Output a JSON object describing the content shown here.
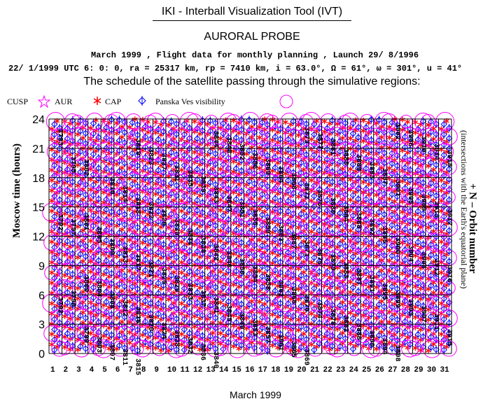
{
  "header": {
    "tool_title": "IKI - Interball Visualization Tool (IVT)",
    "probe": "AURORAL PROBE",
    "line1": "March 1999 ,  Flight data for monthly planning ,   Launch 29/ 8/1996",
    "line2": "22/ 1/1999 UTC  6: 0: 0, ra =  25317 km, rp =   7410 km, i = 63.0°, Ω =  61°, ω = 301°, u =  41°",
    "subtitle": "The schedule of the satellite passing through the simulative regions:"
  },
  "legend": {
    "cusp": "CUSP",
    "aur": "AUR",
    "cap": "CAP",
    "visibility": "Panska Ves visibility"
  },
  "colors": {
    "aur": "#ff00ff",
    "cap": "#ff0000",
    "visibility": "#0000ff",
    "visibility_circle": "#ff00ff",
    "grid": "#000000",
    "orbit_label": "#000000"
  },
  "chart_data": {
    "type": "scatter",
    "xlabel": "March 1999",
    "ylabel": "Moscow time (hours)",
    "right_label": "+ N – Orbit number",
    "right_sublabel": "(intersections with the Earth's equatorial plane)",
    "x_ticks": [
      "1",
      "2",
      "3",
      "4",
      "5",
      "6",
      "7",
      "8",
      "9",
      "10",
      "11",
      "12",
      "13",
      "14",
      "15",
      "16",
      "17",
      "18",
      "19",
      "20",
      "21",
      "22",
      "23",
      "24",
      "25",
      "26",
      "27",
      "28",
      "29",
      "30",
      "31"
    ],
    "y_ticks": [
      "0",
      "3",
      "6",
      "9",
      "12",
      "15",
      "18",
      "21",
      "24"
    ],
    "xlim": [
      1,
      32
    ],
    "ylim": [
      0,
      24
    ],
    "orbit_period_days": 2.0,
    "orbit_labels": [
      {
        "n": "3793",
        "x": 1.5,
        "y": 23.0
      },
      {
        "n": "3792",
        "x": 1.5,
        "y": 14.3
      },
      {
        "n": "3792",
        "x": 1.5,
        "y": 5.8
      },
      {
        "n": "3795",
        "x": 2.5,
        "y": 20.2
      },
      {
        "n": "3797",
        "x": 2.5,
        "y": 13.8
      },
      {
        "n": "3798",
        "x": 2.5,
        "y": 6.5
      },
      {
        "n": "3802",
        "x": 3.5,
        "y": 19.9
      },
      {
        "n": "3801",
        "x": 3.5,
        "y": 14.3
      },
      {
        "n": "3800",
        "x": 3.5,
        "y": 8.0
      },
      {
        "n": "3799",
        "x": 3.5,
        "y": 2.8
      },
      {
        "n": "3805",
        "x": 4.5,
        "y": 13.0
      },
      {
        "n": "3804",
        "x": 4.5,
        "y": 7.5
      },
      {
        "n": "3803",
        "x": 4.5,
        "y": 1.8
      },
      {
        "n": "3810",
        "x": 5.5,
        "y": 18.0
      },
      {
        "n": "3809",
        "x": 5.5,
        "y": 11.8
      },
      {
        "n": "3808",
        "x": 5.5,
        "y": 6.3
      },
      {
        "n": "3807",
        "x": 5.5,
        "y": 1.0
      },
      {
        "n": "3814",
        "x": 6.5,
        "y": 17.2
      },
      {
        "n": "3813",
        "x": 6.5,
        "y": 11.0
      },
      {
        "n": "3812",
        "x": 6.5,
        "y": 5.5
      },
      {
        "n": "3811",
        "x": 6.5,
        "y": 0.5
      },
      {
        "n": "3819",
        "x": 7.5,
        "y": 22.0
      },
      {
        "n": "3818",
        "x": 7.5,
        "y": 16.0
      },
      {
        "n": "3817",
        "x": 7.5,
        "y": 10.2
      },
      {
        "n": "3816",
        "x": 7.5,
        "y": 4.8
      },
      {
        "n": "3815",
        "x": 7.5,
        "y": -0.5
      },
      {
        "n": "3823",
        "x": 8.5,
        "y": 21.0
      },
      {
        "n": "3822",
        "x": 8.5,
        "y": 15.5
      },
      {
        "n": "3821",
        "x": 8.5,
        "y": 9.5
      },
      {
        "n": "3820",
        "x": 8.5,
        "y": 4.0
      },
      {
        "n": "3827",
        "x": 9.5,
        "y": 20.5
      },
      {
        "n": "3826",
        "x": 9.5,
        "y": 14.8
      },
      {
        "n": "3825",
        "x": 9.5,
        "y": 8.8
      },
      {
        "n": "3824",
        "x": 9.5,
        "y": 3.2
      },
      {
        "n": "3831",
        "x": 10.5,
        "y": 19.3
      },
      {
        "n": "3830",
        "x": 10.5,
        "y": 13.8
      },
      {
        "n": "3829",
        "x": 10.5,
        "y": 8.0
      },
      {
        "n": "3828",
        "x": 10.5,
        "y": 2.4
      },
      {
        "n": "3835",
        "x": 11.5,
        "y": 18.8
      },
      {
        "n": "3834",
        "x": 11.5,
        "y": 12.8
      },
      {
        "n": "3833",
        "x": 11.5,
        "y": 7.2
      },
      {
        "n": "3832",
        "x": 11.5,
        "y": 1.7
      },
      {
        "n": "3839",
        "x": 12.5,
        "y": 18.2
      },
      {
        "n": "3838",
        "x": 12.5,
        "y": 12.0
      },
      {
        "n": "3837",
        "x": 12.5,
        "y": 6.5
      },
      {
        "n": "3836",
        "x": 12.5,
        "y": 1.0
      },
      {
        "n": "3844",
        "x": 13.5,
        "y": 22.8
      },
      {
        "n": "3843",
        "x": 13.5,
        "y": 17.1
      },
      {
        "n": "3842",
        "x": 13.5,
        "y": 11.2
      },
      {
        "n": "3841",
        "x": 13.5,
        "y": 5.8
      },
      {
        "n": "3840",
        "x": 13.5,
        "y": 0.2
      },
      {
        "n": "3848",
        "x": 14.5,
        "y": 22.2
      },
      {
        "n": "3847",
        "x": 14.5,
        "y": 16.2
      },
      {
        "n": "3846",
        "x": 14.5,
        "y": 10.5
      },
      {
        "n": "3845",
        "x": 14.5,
        "y": 5.0
      },
      {
        "n": "3852",
        "x": 15.5,
        "y": 21.5
      },
      {
        "n": "3851",
        "x": 15.5,
        "y": 15.6
      },
      {
        "n": "3850",
        "x": 15.5,
        "y": 9.8
      },
      {
        "n": "3849",
        "x": 15.5,
        "y": 4.2
      },
      {
        "n": "3856",
        "x": 16.5,
        "y": 20.6
      },
      {
        "n": "3855",
        "x": 16.5,
        "y": 14.8
      },
      {
        "n": "3854",
        "x": 16.5,
        "y": 9.0
      },
      {
        "n": "3853",
        "x": 16.5,
        "y": 3.5
      },
      {
        "n": "3860",
        "x": 17.5,
        "y": 20.0
      },
      {
        "n": "3859",
        "x": 17.5,
        "y": 14.0
      },
      {
        "n": "3858",
        "x": 17.5,
        "y": 8.2
      },
      {
        "n": "3857",
        "x": 17.5,
        "y": 2.8
      },
      {
        "n": "3864",
        "x": 18.5,
        "y": 19.2
      },
      {
        "n": "3863",
        "x": 18.5,
        "y": 13.2
      },
      {
        "n": "3862",
        "x": 18.5,
        "y": 7.5
      },
      {
        "n": "3861",
        "x": 18.5,
        "y": 2.0
      },
      {
        "n": "3868",
        "x": 19.5,
        "y": 18.5
      },
      {
        "n": "3867",
        "x": 19.5,
        "y": 12.4
      },
      {
        "n": "3866",
        "x": 19.5,
        "y": 6.8
      },
      {
        "n": "3865",
        "x": 19.5,
        "y": 1.3
      },
      {
        "n": "3873",
        "x": 20.5,
        "y": 23.2
      },
      {
        "n": "3872",
        "x": 20.5,
        "y": 17.5
      },
      {
        "n": "3871",
        "x": 20.5,
        "y": 11.6
      },
      {
        "n": "3870",
        "x": 20.5,
        "y": 6.0
      },
      {
        "n": "3869",
        "x": 20.5,
        "y": 0.5
      },
      {
        "n": "3877",
        "x": 21.5,
        "y": 22.6
      },
      {
        "n": "3876",
        "x": 21.5,
        "y": 16.8
      },
      {
        "n": "3875",
        "x": 21.5,
        "y": 10.8
      },
      {
        "n": "3874",
        "x": 21.5,
        "y": 5.3
      },
      {
        "n": "3881",
        "x": 22.5,
        "y": 22.0
      },
      {
        "n": "3880",
        "x": 22.5,
        "y": 16.0
      },
      {
        "n": "3879",
        "x": 22.5,
        "y": 10.2
      },
      {
        "n": "3878",
        "x": 22.5,
        "y": 4.6
      },
      {
        "n": "3885",
        "x": 23.5,
        "y": 21.0
      },
      {
        "n": "3884",
        "x": 23.5,
        "y": 15.2
      },
      {
        "n": "3883",
        "x": 23.5,
        "y": 9.4
      },
      {
        "n": "3882",
        "x": 23.5,
        "y": 3.9
      },
      {
        "n": "3889",
        "x": 24.5,
        "y": 20.4
      },
      {
        "n": "3888",
        "x": 24.5,
        "y": 14.5
      },
      {
        "n": "3887",
        "x": 24.5,
        "y": 8.7
      },
      {
        "n": "3886",
        "x": 24.5,
        "y": 3.1
      },
      {
        "n": "3893",
        "x": 25.5,
        "y": 19.6
      },
      {
        "n": "3892",
        "x": 25.5,
        "y": 13.8
      },
      {
        "n": "3891",
        "x": 25.5,
        "y": 8.0
      },
      {
        "n": "3890",
        "x": 25.5,
        "y": 2.4
      },
      {
        "n": "3897",
        "x": 26.5,
        "y": 19.0
      },
      {
        "n": "3896",
        "x": 26.5,
        "y": 13.0
      },
      {
        "n": "3895",
        "x": 26.5,
        "y": 7.2
      },
      {
        "n": "3894",
        "x": 26.5,
        "y": 1.6
      },
      {
        "n": "3902",
        "x": 27.5,
        "y": 23.6
      },
      {
        "n": "3901",
        "x": 27.5,
        "y": 17.8
      },
      {
        "n": "3900",
        "x": 27.5,
        "y": 11.9
      },
      {
        "n": "3899",
        "x": 27.5,
        "y": 6.4
      },
      {
        "n": "3898",
        "x": 27.5,
        "y": 0.9
      },
      {
        "n": "3906",
        "x": 28.5,
        "y": 22.9
      },
      {
        "n": "3905",
        "x": 28.5,
        "y": 17.0
      },
      {
        "n": "3904",
        "x": 28.5,
        "y": 11.1
      },
      {
        "n": "3903",
        "x": 28.5,
        "y": 5.6
      },
      {
        "n": "3910",
        "x": 29.5,
        "y": 22.3
      },
      {
        "n": "3909",
        "x": 29.5,
        "y": 16.3
      },
      {
        "n": "3908",
        "x": 29.5,
        "y": 10.4
      },
      {
        "n": "3907",
        "x": 29.5,
        "y": 4.9
      },
      {
        "n": "3914",
        "x": 30.5,
        "y": 21.5
      },
      {
        "n": "3913",
        "x": 30.5,
        "y": 15.6
      },
      {
        "n": "3912",
        "x": 30.5,
        "y": 9.7
      },
      {
        "n": "3911",
        "x": 30.5,
        "y": 4.1
      },
      {
        "n": "3918",
        "x": 31.5,
        "y": 20.8
      },
      {
        "n": "3917",
        "x": 31.5,
        "y": 14.8
      },
      {
        "n": "3916",
        "x": 31.5,
        "y": 9.0
      },
      {
        "n": "3915",
        "x": 31.5,
        "y": 2.5
      }
    ]
  }
}
